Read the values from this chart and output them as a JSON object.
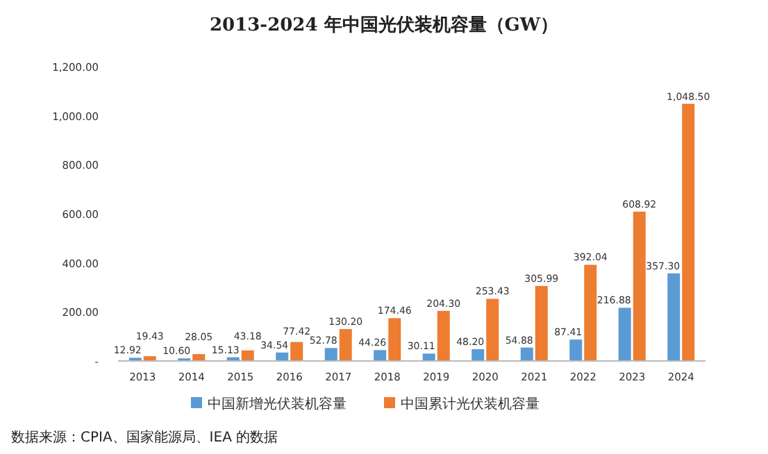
{
  "chart_data": {
    "type": "bar",
    "title": "2013-2024 年中国光伏装机容量（GW）",
    "categories": [
      "2013",
      "2014",
      "2015",
      "2016",
      "2017",
      "2018",
      "2019",
      "2020",
      "2021",
      "2022",
      "2023",
      "2024"
    ],
    "series": [
      {
        "name": "中国新增光伏装机容量",
        "color": "#5b9bd5",
        "values": [
          12.92,
          10.6,
          15.13,
          34.54,
          52.78,
          44.26,
          30.11,
          48.2,
          54.88,
          87.41,
          216.88,
          357.3
        ],
        "value_labels": [
          "12.92",
          "10.60",
          "15.13",
          "34.54",
          "52.78",
          "44.26",
          "30.11",
          "48.20",
          "54.88",
          "87.41",
          "216.88",
          "357.30"
        ]
      },
      {
        "name": "中国累计光伏装机容量",
        "color": "#ed7d31",
        "values": [
          19.43,
          28.05,
          43.18,
          77.42,
          130.2,
          174.46,
          204.3,
          253.43,
          305.99,
          392.04,
          608.92,
          1048.5
        ],
        "value_labels": [
          "19.43",
          "28.05",
          "43.18",
          "77.42",
          "130.20",
          "174.46",
          "204.30",
          "253.43",
          "305.99",
          "392.04",
          "608.92",
          "1,048.50"
        ]
      }
    ],
    "ylim": [
      0,
      1200
    ],
    "yticks": [
      {
        "value": 0,
        "label": "-"
      },
      {
        "value": 200,
        "label": "200.00"
      },
      {
        "value": 400,
        "label": "400.00"
      },
      {
        "value": 600,
        "label": "600.00"
      },
      {
        "value": 800,
        "label": "800.00"
      },
      {
        "value": 1000,
        "label": "1,000.00"
      },
      {
        "value": 1200,
        "label": "1,200.00"
      }
    ],
    "legend": "bottom",
    "annotations": [
      "数据来源：CPIA、国家能源局、IEA 的数据"
    ]
  }
}
